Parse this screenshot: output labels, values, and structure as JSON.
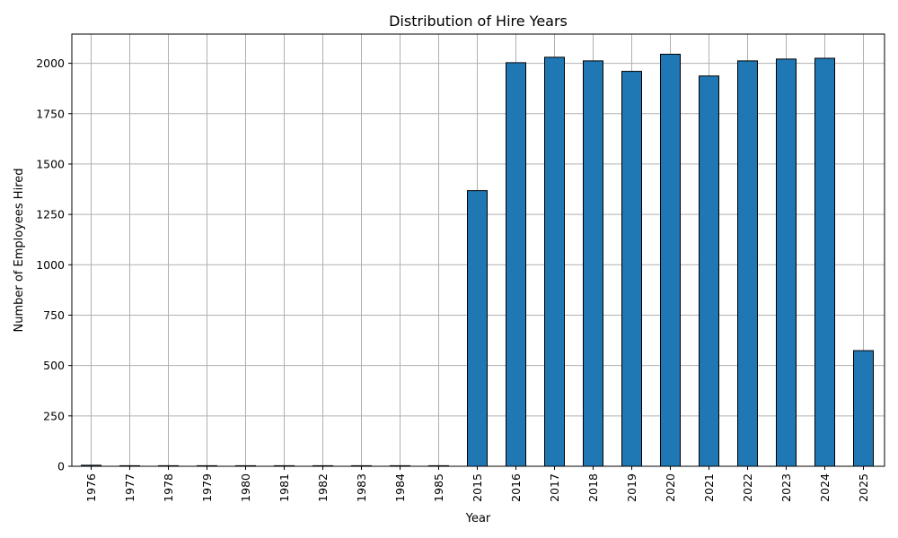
{
  "chart_data": {
    "type": "bar",
    "title": "Distribution of Hire Years",
    "xlabel": "Year",
    "ylabel": "Number of Employees Hired",
    "categories": [
      "1976",
      "1977",
      "1978",
      "1979",
      "1980",
      "1981",
      "1982",
      "1983",
      "1984",
      "1985",
      "2015",
      "2016",
      "2017",
      "2018",
      "2019",
      "2020",
      "2021",
      "2022",
      "2023",
      "2024",
      "2025"
    ],
    "values": [
      5,
      1,
      1,
      1,
      1,
      1,
      1,
      1,
      1,
      1,
      1368,
      2003,
      2030,
      2012,
      1960,
      2045,
      1937,
      2012,
      2021,
      2025,
      574
    ],
    "ylim": [
      0,
      2145
    ],
    "yticks": [
      0,
      250,
      500,
      750,
      1000,
      1250,
      1500,
      1750,
      2000
    ],
    "grid": true,
    "colors": {
      "bar_fill": "#1f77b4",
      "bar_edge": "#000000",
      "grid": "#b0b0b0"
    }
  }
}
